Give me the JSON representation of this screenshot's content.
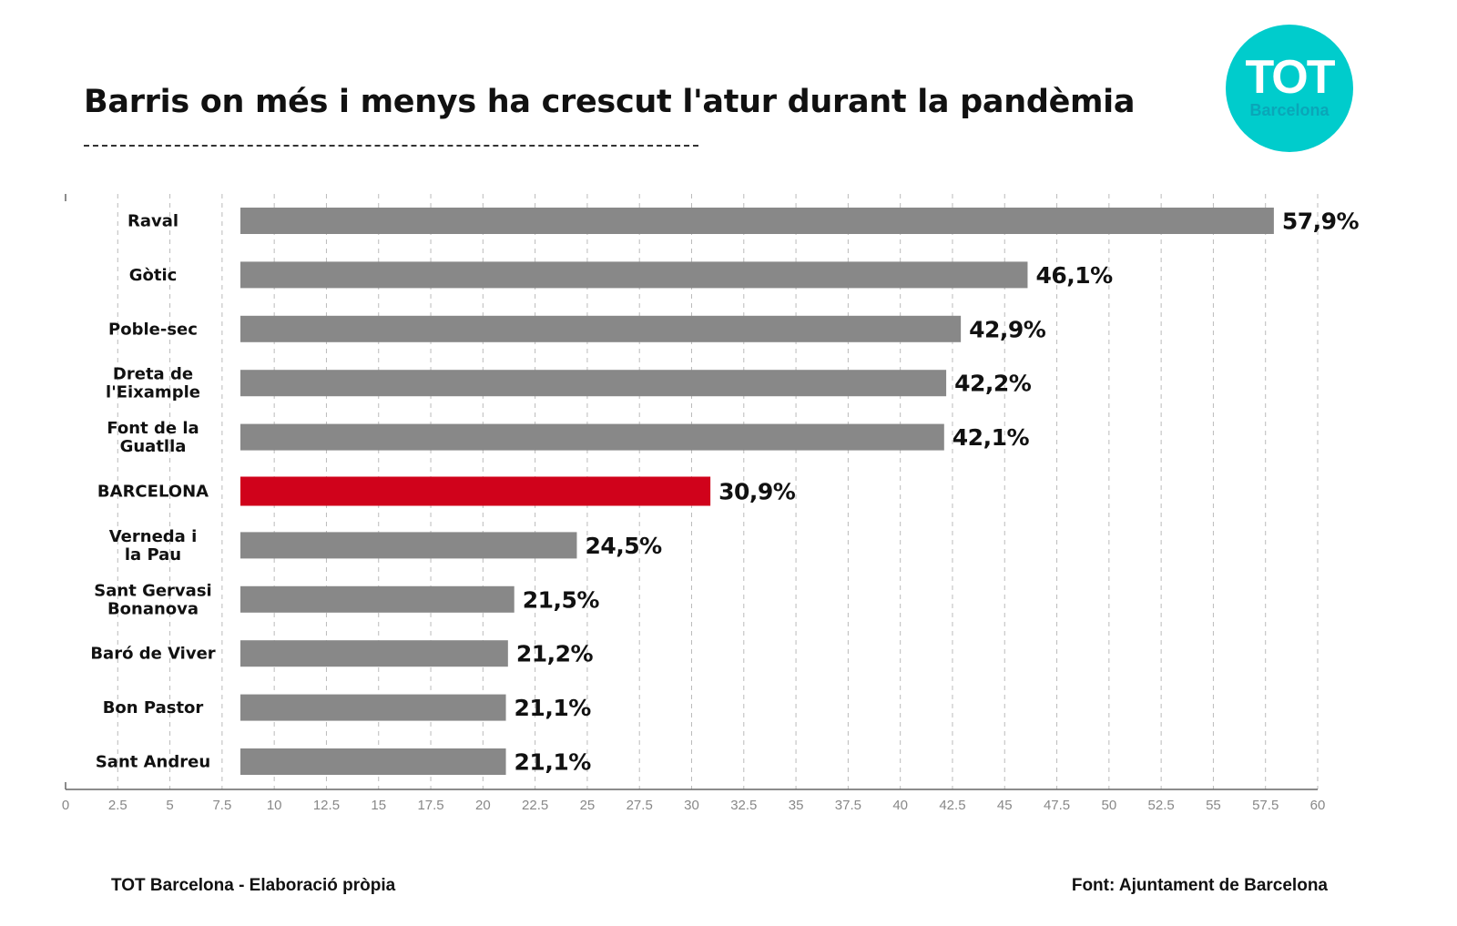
{
  "chart_data": {
    "type": "bar",
    "orientation": "horizontal",
    "title": "Barris on més i menys ha crescut l'atur durant la pandèmia",
    "categories": [
      [
        "Raval"
      ],
      [
        "Gòtic"
      ],
      [
        "Poble-sec"
      ],
      [
        "Dreta de",
        "l'Eixample"
      ],
      [
        "Font de la",
        "Guatlla"
      ],
      [
        "BARCELONA"
      ],
      [
        "Verneda i",
        "la Pau"
      ],
      [
        "Sant Gervasi",
        "Bonanova"
      ],
      [
        "Baró de Viver"
      ],
      [
        "Bon Pastor"
      ],
      [
        "Sant Andreu"
      ]
    ],
    "values": [
      57.9,
      46.1,
      42.9,
      42.2,
      42.1,
      30.9,
      24.5,
      21.5,
      21.2,
      21.1,
      21.1
    ],
    "value_labels": [
      "57,9%",
      "46,1%",
      "42,9%",
      "42,2%",
      "42,1%",
      "30,9%",
      "24,5%",
      "21,5%",
      "21,2%",
      "21,1%",
      "21,1%"
    ],
    "highlight_index": 5,
    "xlim": [
      0,
      60
    ],
    "xticks": [
      "0",
      "2.5",
      "5",
      "7.5",
      "10",
      "12.5",
      "15",
      "17.5",
      "20",
      "22.5",
      "25",
      "27.5",
      "30",
      "32.5",
      "35",
      "37.5",
      "40",
      "42.5",
      "45",
      "47.5",
      "50",
      "52.5",
      "55",
      "57.5",
      "60"
    ],
    "grid": true,
    "colors": {
      "bar": "#888888",
      "highlight": "#d0021b",
      "logo": "#00cccc"
    }
  },
  "logo": {
    "line1": "TOT",
    "line2": "Barcelona"
  },
  "footer": {
    "left": "TOT Barcelona - Elaboració pròpia",
    "right": "Font: Ajuntament de Barcelona"
  }
}
